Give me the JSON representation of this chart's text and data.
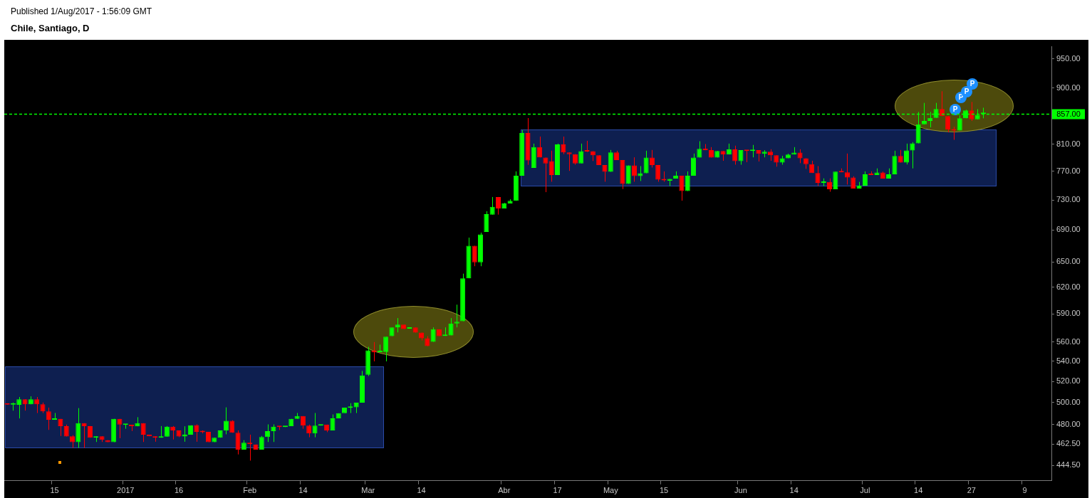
{
  "chart_data": {
    "type": "candlestick",
    "title": "Chile, Santiago, D",
    "annotations": [
      "Published 1/Aug/2017 - 1:56:09 GMT",
      "P",
      "P",
      "P",
      "P"
    ],
    "categories": [
      null,
      null,
      null,
      null,
      null,
      null,
      null,
      null,
      "15",
      null,
      null,
      null,
      null,
      null,
      null,
      null,
      null,
      null,
      null,
      null,
      "2017",
      null,
      null,
      null,
      null,
      null,
      null,
      null,
      null,
      "16",
      null,
      null,
      null,
      null,
      null,
      null,
      null,
      null,
      null,
      null,
      null,
      "Feb",
      null,
      null,
      null,
      null,
      null,
      null,
      null,
      null,
      "14",
      null,
      null,
      null,
      null,
      null,
      null,
      null,
      null,
      null,
      null,
      "Mar",
      null,
      null,
      null,
      null,
      null,
      null,
      null,
      null,
      "14",
      null,
      null,
      null,
      null,
      null,
      null,
      null,
      null,
      null,
      null,
      null,
      null,
      null,
      "Abr",
      null,
      null,
      null,
      null,
      null,
      null,
      null,
      null,
      "17",
      null,
      null,
      null,
      null,
      null,
      null,
      null,
      null,
      "May",
      null,
      null,
      null,
      null,
      null,
      null,
      null,
      null,
      "15",
      null,
      null,
      null,
      null,
      null,
      null,
      null,
      null,
      null,
      null,
      null,
      null,
      "Jun",
      null,
      null,
      null,
      null,
      null,
      null,
      null,
      null,
      "14",
      null,
      null,
      null,
      null,
      null,
      null,
      null,
      null,
      null,
      null,
      null,
      "Jul",
      null,
      null,
      null,
      null,
      null,
      null,
      null,
      null,
      "14",
      null,
      null,
      null,
      null,
      null,
      null,
      null,
      null,
      "27",
      null,
      null,
      null,
      null,
      null,
      null,
      null,
      null,
      "9",
      null,
      null,
      null,
      null
    ],
    "ohlc": [
      [
        499.1,
        499.1,
        498.1,
        498.1
      ],
      [
        498.0,
        500.0,
        492.5,
        498.2
      ],
      [
        497.8,
        505.2,
        485.4,
        503.0
      ],
      [
        503.0,
        503.0,
        492.5,
        498.3
      ],
      [
        498.3,
        505.8,
        498.3,
        503.0
      ],
      [
        503.0,
        505.2,
        490.3,
        498.3
      ],
      [
        498.3,
        500.0,
        490.3,
        491.8
      ],
      [
        491.8,
        495.3,
        475.1,
        484.1
      ],
      [
        484.1,
        490.3,
        484.1,
        485.0
      ],
      [
        485.0,
        485.0,
        469.7,
        478.5
      ],
      [
        478.5,
        479.8,
        469.3,
        469.3
      ],
      [
        469.5,
        470.4,
        459.4,
        464.3
      ],
      [
        464.3,
        494.8,
        459.4,
        481.1
      ],
      [
        481.1,
        481.1,
        459.4,
        478.5
      ],
      [
        478.5,
        478.5,
        468.2,
        468.2
      ],
      [
        468.2,
        469.5,
        464.5,
        469.5
      ],
      [
        469.5,
        469.5,
        464.5,
        466.3
      ],
      [
        466.1,
        466.1,
        464.3,
        464.3
      ],
      [
        464.3,
        485.0,
        464.3,
        485.0
      ],
      [
        485.0,
        485.0,
        467.8,
        479.8
      ],
      [
        479.6,
        480.0,
        476.1,
        480.0
      ],
      [
        479.6,
        479.6,
        474.1,
        478.5
      ],
      [
        478.3,
        486.5,
        478.3,
        481.1
      ],
      [
        481.1,
        481.1,
        464.5,
        470.8
      ],
      [
        470.8,
        470.8,
        469.5,
        469.5
      ],
      [
        469.5,
        469.5,
        464.7,
        468.2
      ],
      [
        468.2,
        478.5,
        468.2,
        469.1
      ],
      [
        469.1,
        478.5,
        469.1,
        477.9
      ],
      [
        477.9,
        478.5,
        466.7,
        474.6
      ],
      [
        474.6,
        474.6,
        468.7,
        469.3
      ],
      [
        469.3,
        478.3,
        464.7,
        470.8
      ],
      [
        470.8,
        479.2,
        470.8,
        479.2
      ],
      [
        479.4,
        480.0,
        464.7,
        473.3
      ],
      [
        473.5,
        474.6,
        472.0,
        473.1
      ],
      [
        473.3,
        473.3,
        464.3,
        464.3
      ],
      [
        464.3,
        468.2,
        464.3,
        468.2
      ],
      [
        468.2,
        474.6,
        468.2,
        474.6
      ],
      [
        474.6,
        495.5,
        471.2,
        483.2
      ],
      [
        483.2,
        483.7,
        472.5,
        472.5
      ],
      [
        472.5,
        474.6,
        453.8,
        457.9
      ],
      [
        457.9,
        466.0,
        457.9,
        463.9
      ],
      [
        463.5,
        470.9,
        448.6,
        462.6
      ],
      [
        462.4,
        462.4,
        457.9,
        457.9
      ],
      [
        457.9,
        469.7,
        457.9,
        468.8
      ],
      [
        468.8,
        480.0,
        464.5,
        474.0
      ],
      [
        474.0,
        480.0,
        464.5,
        477.9
      ],
      [
        478.3,
        478.3,
        475.0,
        477.6
      ],
      [
        477.6,
        478.5,
        477.6,
        478.5
      ],
      [
        478.5,
        485.0,
        478.5,
        485.0
      ],
      [
        485.0,
        490.3,
        485.0,
        487.5
      ],
      [
        487.5,
        487.5,
        476.1,
        478.9
      ],
      [
        478.9,
        479.8,
        468.6,
        472.0
      ],
      [
        472.0,
        490.3,
        468.6,
        478.9
      ],
      [
        478.9,
        479.8,
        478.9,
        479.8
      ],
      [
        479.8,
        479.8,
        473.1,
        474.6
      ],
      [
        474.6,
        489.0,
        474.6,
        485.4
      ],
      [
        485.4,
        490.1,
        485.4,
        490.1
      ],
      [
        490.1,
        495.3,
        490.1,
        495.3
      ],
      [
        495.1,
        499.4,
        490.3,
        495.5
      ],
      [
        495.5,
        499.8,
        490.3,
        499.8
      ],
      [
        499.8,
        530.4,
        499.8,
        526.0
      ],
      [
        526.6,
        554.8,
        525.4,
        551.2
      ],
      [
        551.2,
        559.8,
        540.0,
        549.1
      ],
      [
        549.3,
        557.1,
        549.3,
        550.2
      ],
      [
        549.5,
        565.4,
        540.0,
        565.4
      ],
      [
        566.0,
        575.2,
        566.0,
        575.2
      ],
      [
        575.2,
        585.4,
        570.0,
        578.3
      ],
      [
        578.3,
        578.3,
        573.6,
        573.6
      ],
      [
        574.0,
        574.4,
        574.0,
        574.4
      ],
      [
        575.2,
        575.2,
        569.8,
        569.8
      ],
      [
        569.8,
        569.8,
        561.5,
        563.7
      ],
      [
        563.7,
        566.0,
        555.5,
        555.5
      ],
      [
        560.0,
        575.4,
        560.0,
        573.3
      ],
      [
        573.3,
        573.3,
        566.0,
        566.0
      ],
      [
        566.2,
        575.4,
        566.2,
        566.8
      ],
      [
        566.8,
        585.4,
        566.8,
        579.5
      ],
      [
        579.5,
        600.3,
        575.4,
        581.5
      ],
      [
        582.0,
        636.1,
        582.0,
        630.6
      ],
      [
        630.6,
        680.4,
        630.6,
        670.0
      ],
      [
        670.0,
        670.0,
        645.0,
        649.7
      ],
      [
        649.7,
        686.8,
        645.0,
        684.5
      ],
      [
        687.7,
        714.8,
        687.7,
        710.9
      ],
      [
        710.3,
        734.0,
        710.3,
        720.6
      ],
      [
        734.0,
        734.0,
        710.3,
        718.5
      ],
      [
        718.5,
        726.0,
        718.5,
        725.2
      ],
      [
        725.2,
        731.0,
        725.2,
        728.8
      ],
      [
        728.8,
        770.0,
        728.8,
        763.7
      ],
      [
        763.7,
        831.7,
        763.7,
        827.1
      ],
      [
        827.1,
        850.6,
        779.5,
        785.9
      ],
      [
        775.0,
        811.0,
        775.0,
        805.7
      ],
      [
        805.7,
        821.8,
        790.3,
        790.3
      ],
      [
        790.2,
        790.2,
        740.7,
        781.6
      ],
      [
        784.8,
        800.3,
        755.3,
        764.7
      ],
      [
        764.7,
        811.0,
        764.7,
        809.7
      ],
      [
        809.7,
        821.7,
        795.2,
        797.8
      ],
      [
        797.8,
        797.8,
        770.7,
        795.2
      ],
      [
        795.2,
        795.2,
        779.7,
        781.6
      ],
      [
        781.6,
        811.0,
        781.6,
        799.5
      ],
      [
        800.3,
        815.3,
        798.4,
        799.2
      ],
      [
        799.5,
        799.5,
        785.1,
        793.5
      ],
      [
        793.5,
        793.5,
        779.2,
        779.2
      ],
      [
        779.2,
        779.2,
        755.3,
        769.3
      ],
      [
        769.3,
        801.4,
        769.3,
        797.8
      ],
      [
        797.8,
        800.3,
        786.5,
        786.5
      ],
      [
        786.5,
        786.5,
        745.0,
        752.3
      ],
      [
        752.3,
        778.6,
        752.3,
        778.6
      ],
      [
        778.6,
        790.5,
        755.3,
        763.3
      ],
      [
        763.3,
        777.6,
        756.3,
        767.3
      ],
      [
        767.3,
        800.3,
        767.3,
        790.2
      ],
      [
        790.2,
        801.4,
        775.6,
        779.2
      ],
      [
        779.2,
        779.2,
        755.3,
        758.3
      ],
      [
        758.3,
        770.0,
        755.3,
        757.3
      ],
      [
        756.7,
        759.3,
        749.3,
        759.3
      ],
      [
        759.7,
        770.0,
        759.7,
        763.7
      ],
      [
        763.7,
        763.7,
        729.0,
        742.3
      ],
      [
        742.3,
        770.0,
        742.3,
        763.7
      ],
      [
        763.7,
        796.1,
        763.7,
        790.2
      ],
      [
        790.2,
        814.6,
        790.2,
        803.2
      ],
      [
        803.2,
        810.3,
        801.1,
        801.1
      ],
      [
        801.1,
        805.7,
        790.2,
        790.2
      ],
      [
        790.2,
        800.0,
        790.2,
        800.0
      ],
      [
        800.0,
        800.0,
        785.4,
        794.7
      ],
      [
        794.7,
        811.0,
        794.7,
        802.2
      ],
      [
        802.2,
        807.9,
        779.7,
        784.8
      ],
      [
        784.8,
        801.1,
        779.7,
        801.1
      ],
      [
        801.1,
        801.1,
        783.3,
        800.0
      ],
      [
        800.0,
        809.0,
        790.5,
        801.1
      ],
      [
        801.1,
        801.1,
        784.4,
        795.7
      ],
      [
        795.7,
        801.1,
        790.5,
        798.9
      ],
      [
        798.9,
        802.5,
        785.4,
        793.5
      ],
      [
        793.5,
        793.5,
        776.8,
        782.7
      ],
      [
        782.7,
        792.7,
        779.7,
        789.1
      ],
      [
        789.1,
        795.9,
        789.1,
        794.7
      ],
      [
        794.7,
        805.7,
        794.7,
        797.4
      ],
      [
        797.4,
        802.5,
        781.9,
        789.1
      ],
      [
        789.1,
        789.1,
        773.6,
        780.5
      ],
      [
        780.5,
        785.4,
        767.7,
        767.7
      ],
      [
        767.7,
        777.6,
        749.3,
        753.7
      ],
      [
        753.7,
        760.0,
        749.3,
        755.0
      ],
      [
        755.0,
        760.0,
        741.3,
        744.7
      ],
      [
        744.7,
        769.7,
        744.7,
        769.7
      ],
      [
        769.7,
        774.3,
        768.7,
        768.7
      ],
      [
        768.7,
        796.1,
        751.3,
        761.3
      ],
      [
        761.3,
        763.0,
        745.7,
        745.7
      ],
      [
        745.7,
        755.0,
        745.7,
        749.7
      ],
      [
        749.7,
        770.0,
        749.7,
        765.7
      ],
      [
        765.7,
        770.0,
        764.7,
        764.7
      ],
      [
        764.7,
        774.3,
        764.7,
        768.3
      ],
      [
        768.3,
        769.7,
        759.7,
        759.7
      ],
      [
        759.7,
        774.3,
        759.7,
        765.7
      ],
      [
        765.7,
        800.3,
        765.7,
        792.4
      ],
      [
        792.4,
        801.4,
        782.7,
        782.7
      ],
      [
        782.7,
        811.0,
        780.0,
        800.6
      ],
      [
        800.6,
        813.2,
        774.3,
        811.4
      ],
      [
        811.4,
        860.4,
        811.4,
        840.7
      ],
      [
        840.7,
        875.1,
        840.7,
        846.0
      ],
      [
        846.0,
        860.4,
        836.0,
        850.9
      ],
      [
        850.9,
        875.1,
        850.9,
        865.2
      ],
      [
        865.2,
        894.3,
        853.8,
        853.8
      ],
      [
        853.8,
        853.8,
        828.2,
        832.4
      ],
      [
        832.7,
        837.0,
        816.8,
        831.0
      ],
      [
        831.0,
        854.9,
        831.0,
        850.2
      ],
      [
        850.2,
        864.0,
        850.2,
        862.9
      ],
      [
        862.9,
        876.6,
        846.0,
        848.7
      ],
      [
        848.7,
        864.9,
        848.7,
        855.6
      ],
      [
        857.2,
        867.2,
        850.2,
        858.4
      ],
      null,
      null,
      null,
      null,
      null,
      null,
      null,
      null,
      null,
      null,
      null
    ],
    "log": true,
    "ylim": [
      432,
      972
    ],
    "yticks": [
      {
        "value": 444.5,
        "label": "444.50"
      },
      {
        "value": 462.5,
        "label": "462.50"
      },
      {
        "value": 480,
        "label": "480.00"
      },
      {
        "value": 500,
        "label": "500.00"
      },
      {
        "value": 520,
        "label": "520.00"
      },
      {
        "value": 540,
        "label": "540.00"
      },
      {
        "value": 560,
        "label": "560.00"
      },
      {
        "value": 590,
        "label": "590.00"
      },
      {
        "value": 620,
        "label": "620.00"
      },
      {
        "value": 650,
        "label": "650.00"
      },
      {
        "value": 690,
        "label": "690.00"
      },
      {
        "value": 730,
        "label": "730.00"
      },
      {
        "value": 770,
        "label": "770.00"
      },
      {
        "value": 810,
        "label": "810.00"
      },
      {
        "value": 900,
        "label": "900.00"
      },
      {
        "value": 950,
        "label": "950.00"
      }
    ],
    "ref_lines": [
      {
        "axis": "y",
        "value": 857,
        "label": "857.00",
        "color": "#00ff00",
        "line_style": "dashed"
      }
    ],
    "grid": false,
    "legend": false
  }
}
